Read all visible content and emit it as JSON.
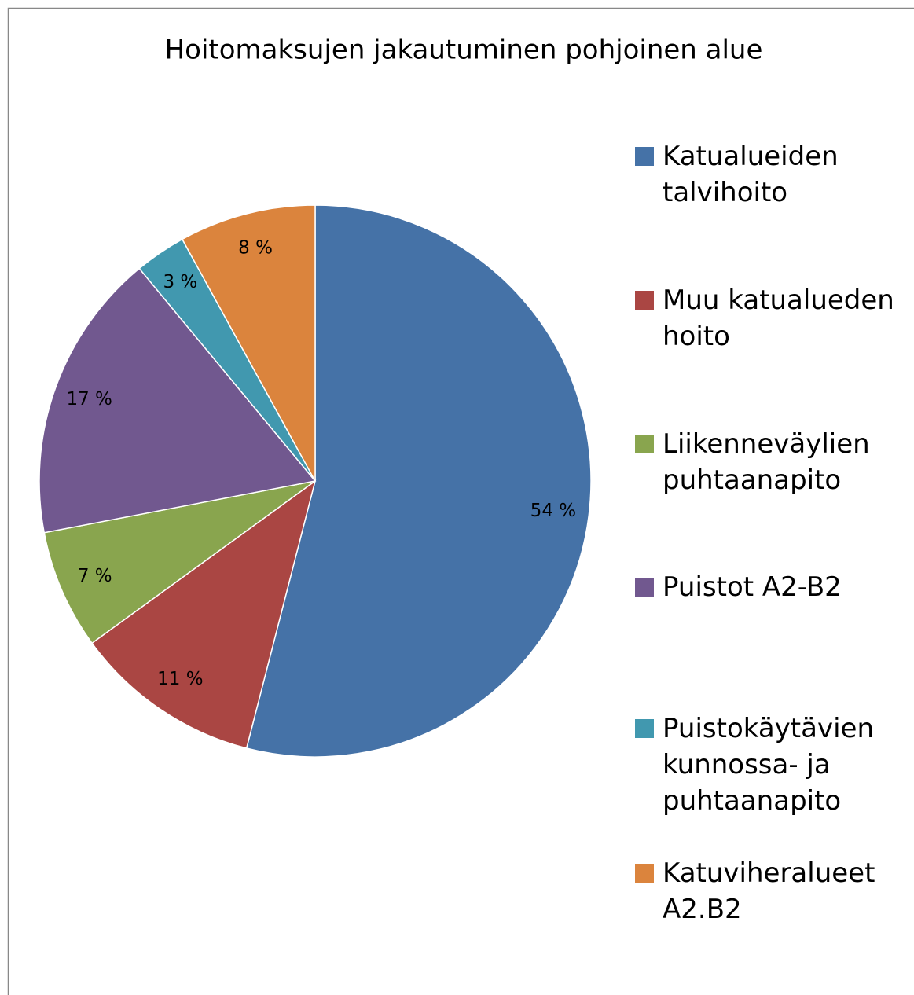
{
  "chart_data": {
    "type": "pie",
    "title": "Hoitomaksujen jakautuminen pohjoinen alue",
    "categories": [
      "Katualueiden talvihoito",
      "Muu katualueden hoito",
      "Liikenneväylien puhtaanapito",
      "Puistot A2-B2",
      "Puistokäytävien kunnossa- ja puhtaanapito",
      "Katuviheralueet A2.B2"
    ],
    "values": [
      54,
      11,
      7,
      17,
      3,
      8
    ],
    "value_labels": [
      "54 %",
      "11 %",
      "7 %",
      "17 %",
      "3 %",
      "8 %"
    ],
    "colors": [
      "#4572a7",
      "#aa4643",
      "#89a54e",
      "#71588f",
      "#4198af",
      "#db843d"
    ],
    "legend": "right"
  }
}
